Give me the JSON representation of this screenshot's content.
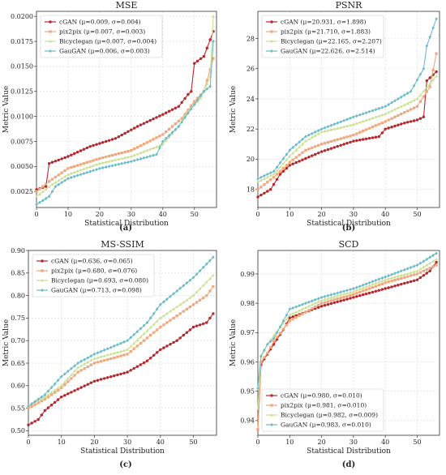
{
  "chart_data": [
    {
      "type": "line",
      "title": "MSE",
      "caption": "(a)",
      "xlabel": "Statistical Distribution",
      "ylabel": "Metric Value",
      "xlim": [
        0,
        57
      ],
      "ylim": [
        0.0009,
        0.0205
      ],
      "xticks": [
        0,
        10,
        20,
        30,
        40,
        50
      ],
      "yticks": [
        0.0025,
        0.005,
        0.0075,
        0.01,
        0.0125,
        0.015,
        0.0175,
        0.02
      ],
      "ytick_labels": [
        "0.0025",
        "0.0050",
        "0.0075",
        "0.0100",
        "0.0125",
        "0.0150",
        "0.0175",
        "0.0200"
      ],
      "grid": true,
      "legend_position": "top-left",
      "series": [
        {
          "name": "cGAN (μ=0.009, σ=0.004)",
          "color": "#b5282e",
          "anchors": [
            [
              0,
              0.0027
            ],
            [
              3,
              0.003
            ],
            [
              4,
              0.0053
            ],
            [
              10,
              0.006
            ],
            [
              17,
              0.007
            ],
            [
              25,
              0.0078
            ],
            [
              32,
              0.009
            ],
            [
              40,
              0.0102
            ],
            [
              45,
              0.011
            ],
            [
              48,
              0.0122
            ],
            [
              49,
              0.0125
            ],
            [
              50,
              0.0153
            ],
            [
              53,
              0.016
            ],
            [
              56,
              0.0185
            ]
          ]
        },
        {
          "name": "pix2pix (μ=0.007, σ=0.003)",
          "color": "#f1a77c",
          "anchors": [
            [
              0,
              0.0025
            ],
            [
              4,
              0.0035
            ],
            [
              10,
              0.0048
            ],
            [
              20,
              0.0058
            ],
            [
              30,
              0.0066
            ],
            [
              40,
              0.0082
            ],
            [
              46,
              0.0098
            ],
            [
              50,
              0.0115
            ],
            [
              53,
              0.0125
            ],
            [
              56,
              0.0158
            ]
          ]
        },
        {
          "name": "Bicyclegan (μ=0.007, σ=0.004)",
          "color": "#c9e08f",
          "anchors": [
            [
              0,
              0.002
            ],
            [
              5,
              0.0032
            ],
            [
              10,
              0.0042
            ],
            [
              20,
              0.0053
            ],
            [
              30,
              0.006
            ],
            [
              40,
              0.0072
            ],
            [
              45,
              0.009
            ],
            [
              48,
              0.0105
            ],
            [
              52,
              0.0118
            ],
            [
              55,
              0.014
            ],
            [
              56,
              0.02
            ]
          ]
        },
        {
          "name": "GauGAN (μ=0.006, σ=0.003)",
          "color": "#6cbcc8",
          "anchors": [
            [
              0,
              0.0012
            ],
            [
              4,
              0.002
            ],
            [
              6,
              0.003
            ],
            [
              10,
              0.0038
            ],
            [
              20,
              0.0048
            ],
            [
              30,
              0.0055
            ],
            [
              38,
              0.0062
            ],
            [
              40,
              0.0075
            ],
            [
              45,
              0.009
            ],
            [
              50,
              0.0112
            ],
            [
              53,
              0.0125
            ],
            [
              55,
              0.013
            ],
            [
              56,
              0.0175
            ]
          ]
        }
      ]
    },
    {
      "type": "line",
      "title": "PSNR",
      "caption": "(b)",
      "xlabel": "Statistical Distribution",
      "ylabel": "Metric Value",
      "xlim": [
        0,
        57
      ],
      "ylim": [
        16.8,
        29.8
      ],
      "xticks": [
        0,
        10,
        20,
        30,
        40,
        50
      ],
      "yticks": [
        18,
        20,
        22,
        24,
        26,
        28
      ],
      "ytick_labels": [
        "18",
        "20",
        "22",
        "24",
        "26",
        "28"
      ],
      "grid": true,
      "legend_position": "top-left",
      "series": [
        {
          "name": "cGAN (μ=20.931, σ=1.898)",
          "color": "#b5282e",
          "anchors": [
            [
              0,
              17.5
            ],
            [
              4,
              18.0
            ],
            [
              7,
              19.0
            ],
            [
              10,
              19.6
            ],
            [
              20,
              20.5
            ],
            [
              30,
              21.2
            ],
            [
              38,
              21.5
            ],
            [
              40,
              22.0
            ],
            [
              46,
              22.4
            ],
            [
              50,
              22.6
            ],
            [
              52,
              22.8
            ],
            [
              53,
              25.2
            ],
            [
              56,
              25.8
            ]
          ]
        },
        {
          "name": "pix2pix (μ=21.710, σ=1.883)",
          "color": "#f1a77c",
          "anchors": [
            [
              0,
              18.0
            ],
            [
              5,
              18.8
            ],
            [
              10,
              19.8
            ],
            [
              15,
              20.6
            ],
            [
              20,
              21.0
            ],
            [
              30,
              21.6
            ],
            [
              40,
              22.5
            ],
            [
              50,
              23.5
            ],
            [
              54,
              24.8
            ],
            [
              56,
              27.0
            ]
          ]
        },
        {
          "name": "Bicyclegan (μ=22.165, σ=2.207)",
          "color": "#c9e08f",
          "anchors": [
            [
              0,
              18.5
            ],
            [
              5,
              19.0
            ],
            [
              10,
              20.2
            ],
            [
              15,
              21.2
            ],
            [
              20,
              21.8
            ],
            [
              30,
              22.3
            ],
            [
              40,
              23.0
            ],
            [
              50,
              24.0
            ],
            [
              54,
              25.0
            ],
            [
              56,
              25.5
            ]
          ]
        },
        {
          "name": "GauGAN (μ=22.626, σ=2.514)",
          "color": "#6cbcc8",
          "anchors": [
            [
              0,
              18.7
            ],
            [
              5,
              19.2
            ],
            [
              10,
              20.6
            ],
            [
              15,
              21.5
            ],
            [
              20,
              22.0
            ],
            [
              30,
              22.8
            ],
            [
              40,
              23.5
            ],
            [
              48,
              24.5
            ],
            [
              52,
              26.0
            ],
            [
              53,
              27.5
            ],
            [
              56,
              29.3
            ]
          ]
        }
      ]
    },
    {
      "type": "line",
      "title": "MS-SSIM",
      "caption": "(c)",
      "xlabel": "Statistical Distribution",
      "ylabel": "Metric Value",
      "xlim": [
        0,
        57
      ],
      "ylim": [
        0.49,
        0.9
      ],
      "xticks": [
        0,
        10,
        20,
        30,
        40,
        50
      ],
      "yticks": [
        0.5,
        0.55,
        0.6,
        0.65,
        0.7,
        0.75,
        0.8,
        0.85,
        0.9
      ],
      "ytick_labels": [
        "0.50",
        "0.55",
        "0.60",
        "0.65",
        "0.70",
        "0.75",
        "0.80",
        "0.85",
        "0.90"
      ],
      "grid": true,
      "legend_position": "top-left",
      "series": [
        {
          "name": "cGAN (μ=0.636, σ=0.065)",
          "color": "#b5282e",
          "anchors": [
            [
              0,
              0.513
            ],
            [
              3,
              0.525
            ],
            [
              5,
              0.545
            ],
            [
              10,
              0.575
            ],
            [
              20,
              0.61
            ],
            [
              30,
              0.63
            ],
            [
              36,
              0.655
            ],
            [
              40,
              0.68
            ],
            [
              45,
              0.7
            ],
            [
              50,
              0.73
            ],
            [
              54,
              0.74
            ],
            [
              56,
              0.76
            ]
          ]
        },
        {
          "name": "pix2pix (μ=0.680, σ=0.076)",
          "color": "#f1a77c",
          "anchors": [
            [
              0,
              0.55
            ],
            [
              5,
              0.57
            ],
            [
              10,
              0.595
            ],
            [
              15,
              0.63
            ],
            [
              20,
              0.65
            ],
            [
              30,
              0.67
            ],
            [
              40,
              0.73
            ],
            [
              50,
              0.78
            ],
            [
              54,
              0.8
            ],
            [
              56,
              0.82
            ]
          ]
        },
        {
          "name": "Bicyclegan (μ=0.693, σ=0.080)",
          "color": "#c9e08f",
          "anchors": [
            [
              0,
              0.555
            ],
            [
              5,
              0.575
            ],
            [
              10,
              0.6
            ],
            [
              15,
              0.64
            ],
            [
              20,
              0.66
            ],
            [
              30,
              0.68
            ],
            [
              40,
              0.75
            ],
            [
              50,
              0.8
            ],
            [
              54,
              0.83
            ],
            [
              56,
              0.845
            ]
          ]
        },
        {
          "name": "GauGAN (μ=0.713, σ=0.098)",
          "color": "#6cbcc8",
          "anchors": [
            [
              0,
              0.555
            ],
            [
              5,
              0.58
            ],
            [
              10,
              0.62
            ],
            [
              15,
              0.65
            ],
            [
              20,
              0.67
            ],
            [
              30,
              0.7
            ],
            [
              36,
              0.74
            ],
            [
              40,
              0.78
            ],
            [
              50,
              0.84
            ],
            [
              54,
              0.87
            ],
            [
              56,
              0.885
            ]
          ]
        }
      ]
    },
    {
      "type": "line",
      "title": "SCD",
      "caption": "(d)",
      "xlabel": "Statistical Distribution",
      "ylabel": "Metric Value",
      "xlim": [
        0,
        57
      ],
      "ylim": [
        0.935,
        0.998
      ],
      "xticks": [
        0,
        10,
        20,
        30,
        40,
        50
      ],
      "yticks": [
        0.94,
        0.95,
        0.96,
        0.97,
        0.98,
        0.99
      ],
      "ytick_labels": [
        "0.94",
        "0.95",
        "0.96",
        "0.97",
        "0.98",
        "0.99"
      ],
      "grid": true,
      "legend_position": "bottom-left",
      "series": [
        {
          "name": "cGAN (μ=0.980, σ=0.010)",
          "color": "#b5282e",
          "anchors": [
            [
              0,
              0.937
            ],
            [
              1,
              0.959
            ],
            [
              2,
              0.961
            ],
            [
              5,
              0.966
            ],
            [
              8,
              0.971
            ],
            [
              10,
              0.975
            ],
            [
              20,
              0.979
            ],
            [
              30,
              0.982
            ],
            [
              40,
              0.985
            ],
            [
              50,
              0.988
            ],
            [
              54,
              0.991
            ],
            [
              56,
              0.994
            ]
          ]
        },
        {
          "name": "pix2pix (μ=0.981, σ=0.010)",
          "color": "#f1a77c",
          "anchors": [
            [
              0,
              0.937
            ],
            [
              1,
              0.96
            ],
            [
              3,
              0.963
            ],
            [
              5,
              0.967
            ],
            [
              10,
              0.974
            ],
            [
              20,
              0.98
            ],
            [
              30,
              0.983
            ],
            [
              40,
              0.987
            ],
            [
              50,
              0.99
            ],
            [
              56,
              0.993
            ]
          ]
        },
        {
          "name": "Bicyclegan (μ=0.982, σ=0.009)",
          "color": "#c9e08f",
          "anchors": [
            [
              0,
              0.944
            ],
            [
              1,
              0.962
            ],
            [
              3,
              0.966
            ],
            [
              5,
              0.969
            ],
            [
              10,
              0.976
            ],
            [
              20,
              0.981
            ],
            [
              30,
              0.984
            ],
            [
              40,
              0.988
            ],
            [
              50,
              0.991
            ],
            [
              56,
              0.995
            ]
          ]
        },
        {
          "name": "GauGAN (μ=0.983, σ=0.010)",
          "color": "#6cbcc8",
          "anchors": [
            [
              0,
              0.951
            ],
            [
              1,
              0.962
            ],
            [
              3,
              0.966
            ],
            [
              5,
              0.968
            ],
            [
              10,
              0.978
            ],
            [
              20,
              0.982
            ],
            [
              30,
              0.985
            ],
            [
              40,
              0.989
            ],
            [
              50,
              0.993
            ],
            [
              56,
              0.997
            ]
          ]
        }
      ]
    }
  ]
}
